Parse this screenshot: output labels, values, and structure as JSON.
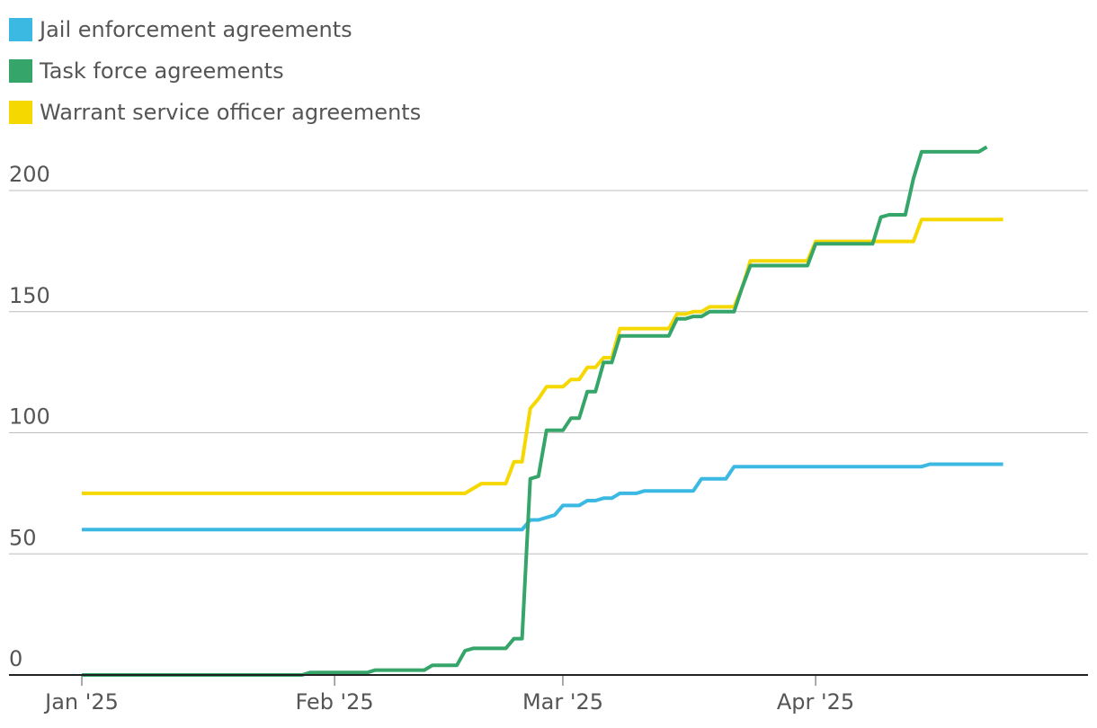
{
  "chart_data": {
    "type": "line",
    "title": "",
    "xlabel": "",
    "ylabel": "",
    "x_range": [
      "2025-01-01",
      "2025-04-30"
    ],
    "ylim": [
      0,
      200
    ],
    "y_ticks": [
      0,
      50,
      100,
      150,
      200
    ],
    "y_tick_labels": [
      "0",
      "50",
      "100",
      "150",
      "200"
    ],
    "x_ticks": [
      "2025-01-01",
      "2025-02-01",
      "2025-03-01",
      "2025-04-01"
    ],
    "x_tick_labels": [
      "Jan '25",
      "Feb '25",
      "Mar '25",
      "Apr '25"
    ],
    "grid": "horizontal",
    "legend_position": "top-left",
    "series": [
      {
        "name": "Jail enforcement agreements",
        "color": "#3bb9e3",
        "points": [
          [
            "2025-01-01",
            60
          ],
          [
            "2025-02-24",
            60
          ],
          [
            "2025-02-25",
            64
          ],
          [
            "2025-02-26",
            64
          ],
          [
            "2025-02-27",
            65
          ],
          [
            "2025-02-28",
            66
          ],
          [
            "2025-03-01",
            70
          ],
          [
            "2025-03-03",
            70
          ],
          [
            "2025-03-04",
            72
          ],
          [
            "2025-03-05",
            72
          ],
          [
            "2025-03-06",
            73
          ],
          [
            "2025-03-07",
            73
          ],
          [
            "2025-03-08",
            75
          ],
          [
            "2025-03-10",
            75
          ],
          [
            "2025-03-11",
            76
          ],
          [
            "2025-03-17",
            76
          ],
          [
            "2025-03-18",
            81
          ],
          [
            "2025-03-21",
            81
          ],
          [
            "2025-03-22",
            86
          ],
          [
            "2025-04-14",
            86
          ],
          [
            "2025-04-15",
            87
          ],
          [
            "2025-04-24",
            87
          ]
        ]
      },
      {
        "name": "Task force agreements",
        "color": "#36a56a",
        "points": [
          [
            "2025-01-01",
            0
          ],
          [
            "2025-01-28",
            0
          ],
          [
            "2025-01-29",
            1
          ],
          [
            "2025-02-05",
            1
          ],
          [
            "2025-02-06",
            2
          ],
          [
            "2025-02-12",
            2
          ],
          [
            "2025-02-13",
            4
          ],
          [
            "2025-02-16",
            4
          ],
          [
            "2025-02-17",
            10
          ],
          [
            "2025-02-18",
            11
          ],
          [
            "2025-02-21",
            11
          ],
          [
            "2025-02-22",
            11
          ],
          [
            "2025-02-23",
            15
          ],
          [
            "2025-02-24",
            15
          ],
          [
            "2025-02-25",
            81
          ],
          [
            "2025-02-26",
            82
          ],
          [
            "2025-02-27",
            101
          ],
          [
            "2025-03-01",
            101
          ],
          [
            "2025-03-02",
            106
          ],
          [
            "2025-03-03",
            106
          ],
          [
            "2025-03-04",
            117
          ],
          [
            "2025-03-05",
            117
          ],
          [
            "2025-03-06",
            129
          ],
          [
            "2025-03-07",
            129
          ],
          [
            "2025-03-08",
            140
          ],
          [
            "2025-03-14",
            140
          ],
          [
            "2025-03-15",
            147
          ],
          [
            "2025-03-16",
            147
          ],
          [
            "2025-03-17",
            148
          ],
          [
            "2025-03-18",
            148
          ],
          [
            "2025-03-19",
            150
          ],
          [
            "2025-03-22",
            150
          ],
          [
            "2025-03-23",
            160
          ],
          [
            "2025-03-24",
            169
          ],
          [
            "2025-03-30",
            169
          ],
          [
            "2025-03-31",
            169
          ],
          [
            "2025-04-01",
            178
          ],
          [
            "2025-04-08",
            178
          ],
          [
            "2025-04-09",
            189
          ],
          [
            "2025-04-10",
            190
          ],
          [
            "2025-04-12",
            190
          ],
          [
            "2025-04-13",
            205
          ],
          [
            "2025-04-14",
            216
          ],
          [
            "2025-04-21",
            216
          ],
          [
            "2025-04-22",
            218
          ]
        ]
      },
      {
        "name": "Warrant service officer agreements",
        "color": "#f5d800",
        "points": [
          [
            "2025-01-01",
            75
          ],
          [
            "2025-02-17",
            75
          ],
          [
            "2025-02-18",
            77
          ],
          [
            "2025-02-19",
            79
          ],
          [
            "2025-02-22",
            79
          ],
          [
            "2025-02-23",
            88
          ],
          [
            "2025-02-24",
            88
          ],
          [
            "2025-02-25",
            110
          ],
          [
            "2025-02-26",
            114
          ],
          [
            "2025-02-27",
            119
          ],
          [
            "2025-03-01",
            119
          ],
          [
            "2025-03-02",
            122
          ],
          [
            "2025-03-03",
            122
          ],
          [
            "2025-03-04",
            127
          ],
          [
            "2025-03-05",
            127
          ],
          [
            "2025-03-06",
            131
          ],
          [
            "2025-03-07",
            131
          ],
          [
            "2025-03-08",
            143
          ],
          [
            "2025-03-14",
            143
          ],
          [
            "2025-03-15",
            149
          ],
          [
            "2025-03-16",
            149
          ],
          [
            "2025-03-17",
            150
          ],
          [
            "2025-03-18",
            150
          ],
          [
            "2025-03-19",
            152
          ],
          [
            "2025-03-22",
            152
          ],
          [
            "2025-03-23",
            160
          ],
          [
            "2025-03-24",
            171
          ],
          [
            "2025-03-29",
            171
          ],
          [
            "2025-03-31",
            171
          ],
          [
            "2025-04-01",
            179
          ],
          [
            "2025-04-07",
            179
          ],
          [
            "2025-04-08",
            179
          ],
          [
            "2025-04-13",
            179
          ],
          [
            "2025-04-14",
            188
          ],
          [
            "2025-04-24",
            188
          ]
        ]
      }
    ]
  }
}
